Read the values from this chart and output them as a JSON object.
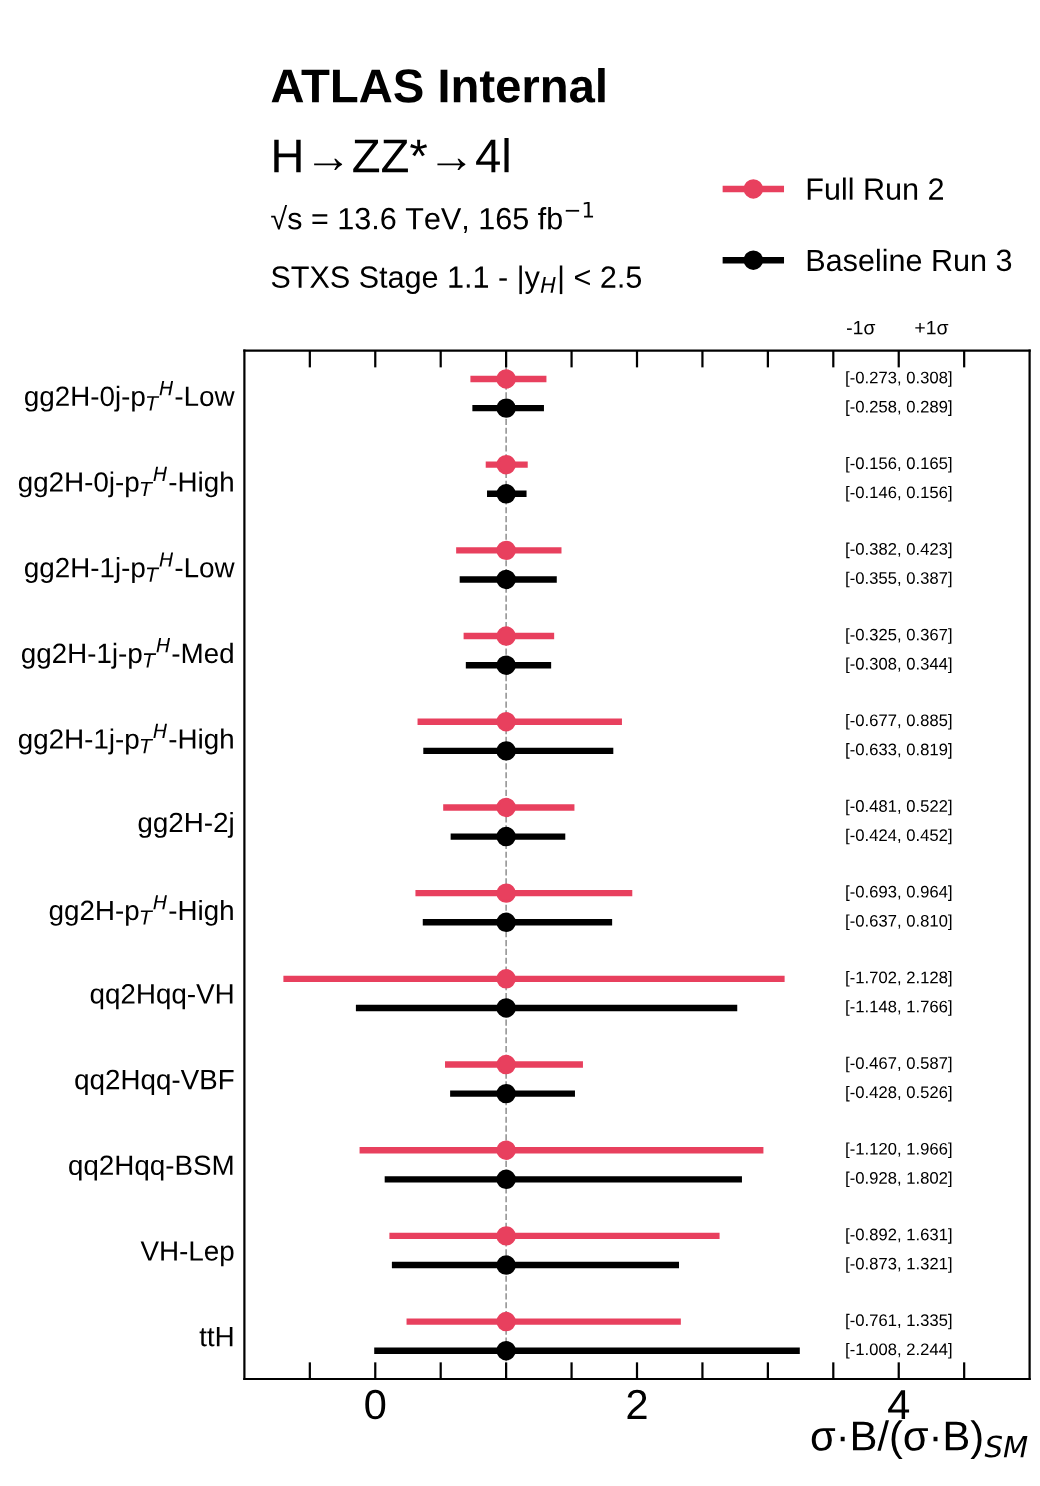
{
  "chart_data": {
    "type": "scatter",
    "orientation": "horizontal",
    "title": "ATLAS Internal",
    "annotations": [
      "H→ZZ*→4l",
      "√s = 13.6 TeV, 165 fb$^{−1}$",
      "STXS Stage 1.1 - |y$_{H}$| < 2.5",
      "-1σ",
      "+1σ",
      "[-0.273, 0.308]",
      "[-0.258, 0.289]",
      "[-0.156, 0.165]",
      "[-0.146, 0.156]",
      "[-0.382, 0.423]",
      "[-0.355, 0.387]",
      "[-0.325, 0.367]",
      "[-0.308, 0.344]",
      "[-0.677, 0.885]",
      "[-0.633, 0.819]",
      "[-0.481, 0.522]",
      "[-0.424, 0.452]",
      "[-0.693, 0.964]",
      "[-0.637, 0.810]",
      "[-1.702, 2.128]",
      "[-1.148, 1.766]",
      "[-0.467, 0.587]",
      "[-0.428, 0.526]",
      "[-1.120, 1.966]",
      "[-0.928, 1.802]",
      "[-0.892, 1.631]",
      "[-0.873, 1.321]",
      "[-0.761, 1.335]",
      "[-1.008, 2.244]"
    ],
    "xlabel": "σ·B/(σ·B)$_{SM}$",
    "categories": [
      "gg2H-0j-p$_{T}$$^{H}$-Low",
      "gg2H-0j-p$_{T}$$^{H}$-High",
      "gg2H-1j-p$_{T}$$^{H}$-Low",
      "gg2H-1j-p$_{T}$$^{H}$-Med",
      "gg2H-1j-p$_{T}$$^{H}$-High",
      "gg2H-2j",
      "gg2H-p$_{T}$$^{H}$-High",
      "qq2Hqq-VH",
      "qq2Hqq-VBF",
      "qq2Hqq-BSM",
      "VH-Lep",
      "ttH"
    ],
    "series": [
      {
        "name": "Full Run 2",
        "color": "#e8405e",
        "values": [
          1,
          1,
          1,
          1,
          1,
          1,
          1,
          1,
          1,
          1,
          1,
          1
        ],
        "errors": [
          [
            0.727,
            1.308
          ],
          [
            0.844,
            1.165
          ],
          [
            0.618,
            1.423
          ],
          [
            0.675,
            1.367
          ],
          [
            0.323,
            1.885
          ],
          [
            0.519,
            1.522
          ],
          [
            0.307,
            1.964
          ],
          [
            -0.702,
            3.128
          ],
          [
            0.533,
            1.587
          ],
          [
            -0.12,
            2.966
          ],
          [
            0.108,
            2.631
          ],
          [
            0.239,
            2.335
          ]
        ]
      },
      {
        "name": "Baseline Run 3",
        "color": "#000000",
        "values": [
          1,
          1,
          1,
          1,
          1,
          1,
          1,
          1,
          1,
          1,
          1,
          1
        ],
        "errors": [
          [
            0.742,
            1.289
          ],
          [
            0.854,
            1.156
          ],
          [
            0.645,
            1.387
          ],
          [
            0.692,
            1.344
          ],
          [
            0.367,
            1.819
          ],
          [
            0.576,
            1.452
          ],
          [
            0.363,
            1.81
          ],
          [
            -0.148,
            2.766
          ],
          [
            0.572,
            1.526
          ],
          [
            0.072,
            2.802
          ],
          [
            0.127,
            2.321
          ],
          [
            -0.008,
            3.244
          ]
        ]
      }
    ],
    "xlim": [
      -1,
      5
    ],
    "xticks": [
      {
        "value": -0.5,
        "label": null
      },
      0,
      {
        "value": 0.5,
        "label": null
      },
      {
        "value": 1,
        "label": null
      },
      {
        "value": 1.5,
        "label": null
      },
      2,
      {
        "value": 2.5,
        "label": null
      },
      {
        "value": 3,
        "label": null
      },
      {
        "value": 3.5,
        "label": null
      },
      4,
      {
        "value": 4.5,
        "label": null
      }
    ],
    "ref_lines": [
      {
        "axis": "x",
        "value": 1,
        "color": "#999999",
        "line_style": "dashed"
      }
    ],
    "marker": "circle",
    "legend": "top right",
    "grid": false
  }
}
